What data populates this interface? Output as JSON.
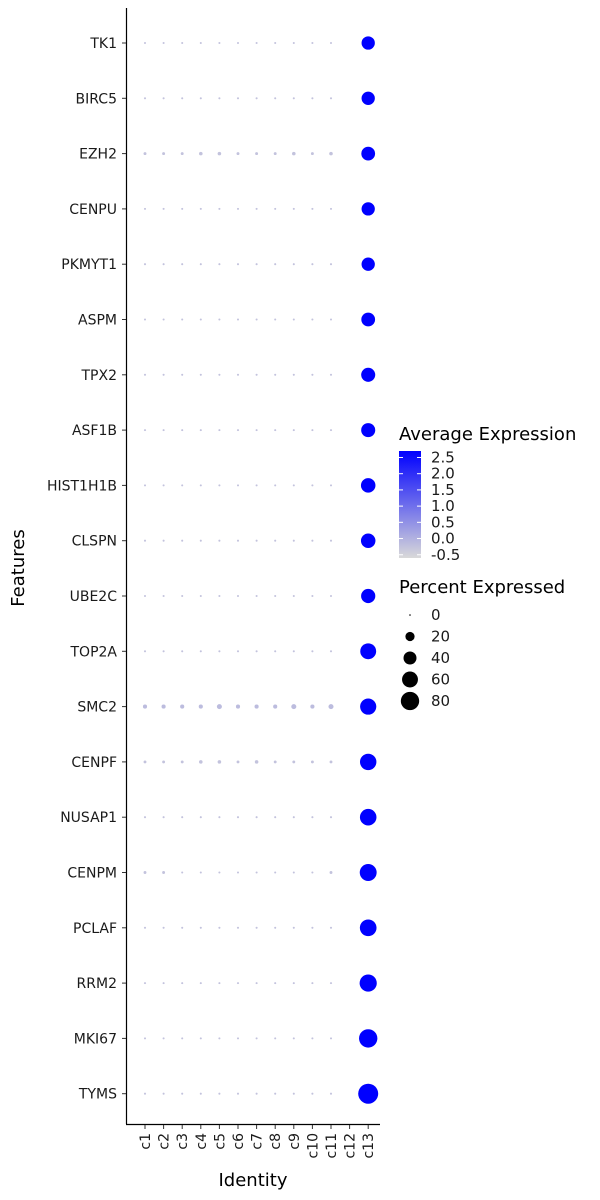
{
  "chart_data": {
    "type": "dotplot",
    "xlabel": "Identity",
    "ylabel": "Features",
    "x_categories": [
      "c1",
      "c2",
      "c3",
      "c4",
      "c5",
      "c6",
      "c7",
      "c8",
      "c9",
      "c10",
      "c11",
      "c12",
      "c13"
    ],
    "y_categories": [
      "TK1",
      "BIRC5",
      "EZH2",
      "CENPU",
      "PKMYT1",
      "ASPM",
      "TPX2",
      "ASF1B",
      "HIST1H1B",
      "CLSPN",
      "UBE2C",
      "TOP2A",
      "SMC2",
      "CENPF",
      "NUSAP1",
      "CENPM",
      "PCLAF",
      "RRM2",
      "MKI67",
      "TYMS"
    ],
    "rows": [
      {
        "feature": "TK1",
        "avg_expression": [
          -0.2,
          -0.2,
          -0.2,
          -0.2,
          -0.2,
          -0.2,
          -0.2,
          -0.2,
          -0.2,
          -0.2,
          -0.2,
          -0.2,
          3.4
        ],
        "pct_expressed": [
          1,
          1,
          1,
          1,
          1,
          1,
          1,
          1,
          1,
          1,
          1,
          0,
          42
        ]
      },
      {
        "feature": "BIRC5",
        "avg_expression": [
          -0.2,
          -0.2,
          -0.2,
          -0.2,
          -0.2,
          -0.2,
          -0.2,
          -0.2,
          -0.2,
          -0.2,
          -0.2,
          -0.2,
          3.4
        ],
        "pct_expressed": [
          1,
          1,
          1,
          1,
          1,
          1,
          1,
          1,
          1,
          1,
          1,
          0,
          42
        ]
      },
      {
        "feature": "EZH2",
        "avg_expression": [
          -0.2,
          -0.2,
          -0.2,
          -0.2,
          -0.2,
          -0.2,
          -0.2,
          -0.2,
          -0.2,
          -0.2,
          -0.2,
          -0.2,
          3.4
        ],
        "pct_expressed": [
          2,
          2,
          2,
          3,
          3,
          2,
          2,
          2,
          3,
          2,
          3,
          0,
          45
        ]
      },
      {
        "feature": "CENPU",
        "avg_expression": [
          -0.2,
          -0.2,
          -0.2,
          -0.2,
          -0.2,
          -0.2,
          -0.2,
          -0.2,
          -0.2,
          -0.2,
          -0.2,
          -0.2,
          3.4
        ],
        "pct_expressed": [
          1,
          1,
          1,
          1,
          1,
          1,
          1,
          1,
          1,
          1,
          1,
          0,
          42
        ]
      },
      {
        "feature": "PKMYT1",
        "avg_expression": [
          -0.2,
          -0.2,
          -0.2,
          -0.2,
          -0.2,
          -0.2,
          -0.2,
          -0.2,
          -0.2,
          -0.2,
          -0.2,
          -0.2,
          3.4
        ],
        "pct_expressed": [
          1,
          1,
          1,
          1,
          1,
          1,
          1,
          1,
          1,
          1,
          1,
          0,
          42
        ]
      },
      {
        "feature": "ASPM",
        "avg_expression": [
          -0.2,
          -0.2,
          -0.2,
          -0.2,
          -0.2,
          -0.2,
          -0.2,
          -0.2,
          -0.2,
          -0.2,
          -0.2,
          -0.2,
          3.4
        ],
        "pct_expressed": [
          1,
          1,
          1,
          1,
          1,
          1,
          1,
          1,
          1,
          1,
          1,
          0,
          45
        ]
      },
      {
        "feature": "TPX2",
        "avg_expression": [
          -0.2,
          -0.2,
          -0.2,
          -0.2,
          -0.2,
          -0.2,
          -0.2,
          -0.2,
          -0.2,
          -0.2,
          -0.2,
          -0.2,
          3.4
        ],
        "pct_expressed": [
          1,
          1,
          1,
          1,
          1,
          1,
          1,
          1,
          1,
          1,
          1,
          0,
          47
        ]
      },
      {
        "feature": "ASF1B",
        "avg_expression": [
          -0.2,
          -0.2,
          -0.2,
          -0.2,
          -0.2,
          -0.2,
          -0.2,
          -0.2,
          -0.2,
          -0.2,
          -0.2,
          -0.2,
          3.4
        ],
        "pct_expressed": [
          1,
          1,
          1,
          1,
          1,
          1,
          1,
          1,
          1,
          1,
          1,
          0,
          47
        ]
      },
      {
        "feature": "HIST1H1B",
        "avg_expression": [
          -0.2,
          -0.2,
          -0.2,
          -0.2,
          -0.2,
          -0.2,
          -0.2,
          -0.2,
          -0.2,
          -0.2,
          -0.2,
          -0.2,
          3.4
        ],
        "pct_expressed": [
          1,
          1,
          1,
          1,
          1,
          1,
          1,
          1,
          1,
          1,
          1,
          0,
          50
        ]
      },
      {
        "feature": "CLSPN",
        "avg_expression": [
          -0.2,
          -0.2,
          -0.2,
          -0.2,
          -0.2,
          -0.2,
          -0.2,
          -0.2,
          -0.2,
          -0.2,
          -0.2,
          -0.2,
          3.4
        ],
        "pct_expressed": [
          1,
          1,
          1,
          1,
          1,
          1,
          1,
          1,
          1,
          1,
          1,
          0,
          50
        ]
      },
      {
        "feature": "UBE2C",
        "avg_expression": [
          -0.2,
          -0.2,
          -0.2,
          -0.2,
          -0.2,
          -0.2,
          -0.2,
          -0.2,
          -0.2,
          -0.2,
          -0.2,
          -0.2,
          3.4
        ],
        "pct_expressed": [
          1,
          1,
          1,
          1,
          1,
          1,
          1,
          1,
          1,
          1,
          1,
          0,
          48
        ]
      },
      {
        "feature": "TOP2A",
        "avg_expression": [
          -0.2,
          -0.2,
          -0.2,
          -0.2,
          -0.2,
          -0.2,
          -0.2,
          -0.2,
          -0.2,
          -0.2,
          -0.2,
          -0.2,
          3.4
        ],
        "pct_expressed": [
          1,
          1,
          1,
          1,
          1,
          1,
          1,
          1,
          1,
          1,
          1,
          0,
          60
        ]
      },
      {
        "feature": "SMC2",
        "avg_expression": [
          -0.1,
          -0.1,
          -0.1,
          -0.1,
          -0.1,
          -0.1,
          -0.1,
          -0.1,
          -0.1,
          -0.1,
          -0.1,
          -0.2,
          3.4
        ],
        "pct_expressed": [
          4,
          4,
          4,
          4,
          6,
          4,
          4,
          4,
          6,
          4,
          6,
          0,
          62
        ]
      },
      {
        "feature": "CENPF",
        "avg_expression": [
          -0.2,
          -0.2,
          -0.2,
          -0.2,
          -0.2,
          -0.2,
          -0.2,
          -0.2,
          -0.2,
          -0.2,
          -0.2,
          -0.2,
          3.4
        ],
        "pct_expressed": [
          2,
          2,
          2,
          3,
          3,
          2,
          3,
          2,
          2,
          2,
          2,
          0,
          64
        ]
      },
      {
        "feature": "NUSAP1",
        "avg_expression": [
          -0.2,
          -0.2,
          -0.2,
          -0.2,
          -0.2,
          -0.2,
          -0.2,
          -0.2,
          -0.2,
          -0.2,
          -0.2,
          -0.2,
          3.4
        ],
        "pct_expressed": [
          1,
          1,
          1,
          1,
          1,
          1,
          1,
          1,
          1,
          1,
          1,
          0,
          65
        ]
      },
      {
        "feature": "CENPM",
        "avg_expression": [
          -0.2,
          -0.2,
          -0.2,
          -0.2,
          -0.2,
          -0.2,
          -0.2,
          -0.2,
          -0.2,
          -0.2,
          -0.2,
          -0.2,
          3.4
        ],
        "pct_expressed": [
          2,
          2,
          1,
          1,
          1,
          1,
          1,
          1,
          1,
          1,
          2,
          0,
          68
        ]
      },
      {
        "feature": "PCLAF",
        "avg_expression": [
          -0.2,
          -0.2,
          -0.2,
          -0.2,
          -0.2,
          -0.2,
          -0.2,
          -0.2,
          -0.2,
          -0.2,
          -0.2,
          -0.2,
          3.4
        ],
        "pct_expressed": [
          1,
          1,
          1,
          1,
          1,
          1,
          1,
          1,
          1,
          1,
          1,
          0,
          66
        ]
      },
      {
        "feature": "RRM2",
        "avg_expression": [
          -0.2,
          -0.2,
          -0.2,
          -0.2,
          -0.2,
          -0.2,
          -0.2,
          -0.2,
          -0.2,
          -0.2,
          -0.2,
          -0.2,
          3.4
        ],
        "pct_expressed": [
          1,
          1,
          1,
          1,
          1,
          1,
          1,
          1,
          1,
          1,
          1,
          0,
          70
        ]
      },
      {
        "feature": "MKI67",
        "avg_expression": [
          -0.2,
          -0.2,
          -0.2,
          -0.2,
          -0.2,
          -0.2,
          -0.2,
          -0.2,
          -0.2,
          -0.2,
          -0.2,
          -0.2,
          3.4
        ],
        "pct_expressed": [
          1,
          1,
          1,
          1,
          1,
          1,
          1,
          1,
          1,
          1,
          1,
          0,
          80
        ]
      },
      {
        "feature": "TYMS",
        "avg_expression": [
          -0.2,
          -0.2,
          -0.2,
          -0.2,
          -0.2,
          -0.2,
          -0.2,
          -0.2,
          -0.2,
          -0.2,
          -0.2,
          -0.2,
          3.4
        ],
        "pct_expressed": [
          1,
          1,
          1,
          1,
          1,
          1,
          1,
          1,
          1,
          1,
          1,
          0,
          95
        ]
      }
    ],
    "color_legend": {
      "title": "Average Expression",
      "ticks": [
        2.5,
        2.0,
        1.5,
        1.0,
        0.5,
        0.0,
        -0.5
      ],
      "tick_labels": [
        "2.5",
        "2.0",
        "1.5",
        "1.0",
        "0.5",
        "0.0",
        "-0.5"
      ],
      "range": [
        -0.5,
        2.5
      ],
      "low_color": "#d9d9d9",
      "high_color": "#0000ff"
    },
    "size_legend": {
      "title": "Percent Expressed",
      "values": [
        0,
        20,
        40,
        60,
        80
      ],
      "labels": [
        "0",
        "20",
        "40",
        "60",
        "80"
      ],
      "range": [
        0,
        95
      ]
    },
    "dot_color": "#000000",
    "axis_color": "#000000"
  }
}
